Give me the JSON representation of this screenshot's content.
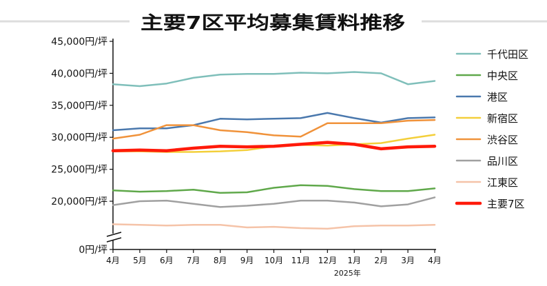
{
  "chart_data": {
    "type": "line",
    "title": "主要7区平均募集賃料推移",
    "categories": [
      "4月",
      "5月",
      "6月",
      "7月",
      "8月",
      "9月",
      "10月",
      "11月",
      "12月",
      "1月",
      "2月",
      "3月",
      "4月"
    ],
    "year_label": "2025年",
    "year_label_under": "1月",
    "ytick_labels": [
      "0円/坪",
      "20,000円/坪",
      "25,000円/坪",
      "30,000円/坪",
      "35,000円/坪",
      "40,000円/坪",
      "45,000円/坪"
    ],
    "y_ticks": [
      0,
      20000,
      25000,
      30000,
      35000,
      40000,
      45000
    ],
    "ylim": [
      0,
      45000
    ],
    "axis_break": true,
    "legend_position": "right",
    "grid": false,
    "series": [
      {
        "name": "千代田区",
        "color": "#7fbfba",
        "width": 2.5,
        "values": [
          38300,
          38000,
          38400,
          39300,
          39800,
          39900,
          39900,
          40100,
          40000,
          40200,
          40000,
          38300,
          38800
        ]
      },
      {
        "name": "中央区",
        "color": "#5fa84a",
        "width": 2.5,
        "values": [
          21700,
          21500,
          21600,
          21800,
          21300,
          21400,
          22100,
          22500,
          22400,
          21900,
          21600,
          21600,
          22000
        ]
      },
      {
        "name": "港区",
        "color": "#4a78ad",
        "width": 2.5,
        "values": [
          31100,
          31400,
          31400,
          31900,
          32900,
          32800,
          32900,
          33000,
          33800,
          33000,
          32300,
          33000,
          33100
        ]
      },
      {
        "name": "新宿区",
        "color": "#f3cf3a",
        "width": 2.5,
        "values": [
          27800,
          27800,
          27700,
          27700,
          27800,
          28000,
          28600,
          28800,
          28700,
          28900,
          29100,
          29800,
          30400
        ]
      },
      {
        "name": "渋谷区",
        "color": "#f0923a",
        "width": 2.5,
        "values": [
          29800,
          30400,
          31900,
          31900,
          31100,
          30800,
          30300,
          30100,
          32200,
          32200,
          32200,
          32600,
          32700
        ]
      },
      {
        "name": "品川区",
        "color": "#a0a0a0",
        "width": 2.5,
        "values": [
          19400,
          20000,
          20100,
          19600,
          19100,
          19300,
          19600,
          20100,
          20100,
          19800,
          19200,
          19500,
          20600
        ]
      },
      {
        "name": "江東区",
        "color": "#f5c3a8",
        "width": 2.5,
        "values": [
          16400,
          16300,
          16200,
          16300,
          16300,
          15900,
          16000,
          15800,
          15700,
          16100,
          16200,
          16200,
          16300
        ]
      },
      {
        "name": "主要7区",
        "color": "#ff1a0a",
        "width": 4.5,
        "values": [
          27900,
          28000,
          27900,
          28300,
          28600,
          28500,
          28600,
          28900,
          29200,
          28900,
          28200,
          28500,
          28600
        ]
      }
    ]
  }
}
